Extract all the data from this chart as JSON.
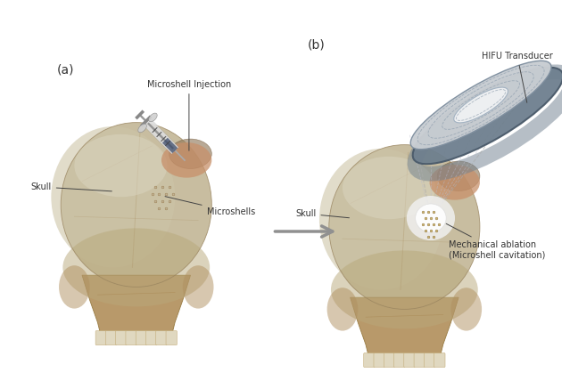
{
  "background_color": "#ffffff",
  "fig_width": 6.39,
  "fig_height": 4.37,
  "dpi": 100,
  "label_a": "(a)",
  "label_b": "(b)",
  "annotation_skull_a": "Skull",
  "annotation_skull_b": "Skull",
  "annotation_injection": "Microshell Injection",
  "annotation_microshells": "Microshells",
  "annotation_hifu": "HIFU Transducer",
  "annotation_ablation": "Mechanical ablation\n(Microshell cavitation)",
  "cranium_main": "#c8bda0",
  "cranium_light": "#ddd5bb",
  "cranium_dark": "#b5a07a",
  "cranium_shadow": "#9a8560",
  "jaw_color": "#b8996a",
  "jaw_dark": "#9a7d45",
  "teeth_color": "#e0d8c0",
  "text_color": "#333333",
  "arrow_color": "#909090",
  "annotation_line_color": "#444444",
  "transducer_rim_color": "#6e7f8e",
  "transducer_face_color": "#c8cdd2",
  "transducer_inner_color": "#e8eaeb",
  "beam_color": "#cccccc"
}
